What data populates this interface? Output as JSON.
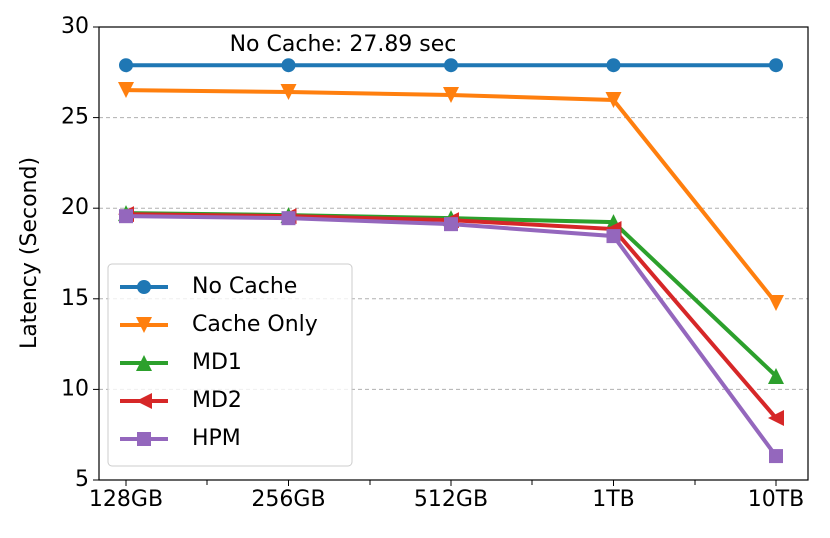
{
  "chart_data": {
    "type": "line",
    "ylabel": "Latency (Second)",
    "annotation": "No Cache: 27.89 sec",
    "categories": [
      "128GB",
      "256GB",
      "512GB",
      "1TB",
      "10TB"
    ],
    "series": [
      {
        "name": "No Cache",
        "color": "#1f77b4",
        "marker": "circle",
        "values": [
          27.89,
          27.89,
          27.89,
          27.89,
          27.89
        ]
      },
      {
        "name": "Cache Only",
        "color": "#ff7f0e",
        "marker": "triangle-down",
        "values": [
          26.52,
          26.41,
          26.25,
          25.97,
          14.77
        ]
      },
      {
        "name": "MD1",
        "color": "#2ca02c",
        "marker": "triangle-up",
        "values": [
          19.73,
          19.62,
          19.45,
          19.23,
          10.74
        ]
      },
      {
        "name": "MD2",
        "color": "#d62728",
        "marker": "triangle-left",
        "values": [
          19.67,
          19.56,
          19.34,
          18.85,
          8.42
        ]
      },
      {
        "name": "HPM",
        "color": "#9467bd",
        "marker": "square",
        "values": [
          19.56,
          19.45,
          19.12,
          18.46,
          6.32
        ]
      }
    ],
    "ylim": [
      5,
      30
    ],
    "yticks": [
      5,
      10,
      15,
      20,
      25,
      30
    ],
    "grid": true,
    "legend": "lower left"
  }
}
